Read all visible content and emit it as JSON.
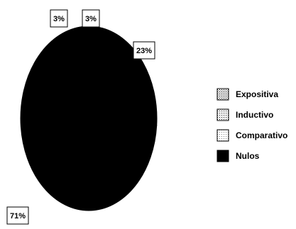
{
  "chart_data": {
    "type": "pie",
    "categories": [
      "Expositiva",
      "Inductivo",
      "Comparativo",
      "Nulos"
    ],
    "values": [
      3,
      3,
      23,
      71
    ],
    "data_labels": [
      "3%",
      "3%",
      "23%",
      "71%"
    ],
    "colors": [
      "#ffffff",
      "#ffffff",
      "#ffffff",
      "#000000"
    ],
    "legend": {
      "position": "right",
      "entries": [
        "Expositiva",
        "Inductivo",
        "Comparativo",
        "Nulos"
      ]
    }
  }
}
